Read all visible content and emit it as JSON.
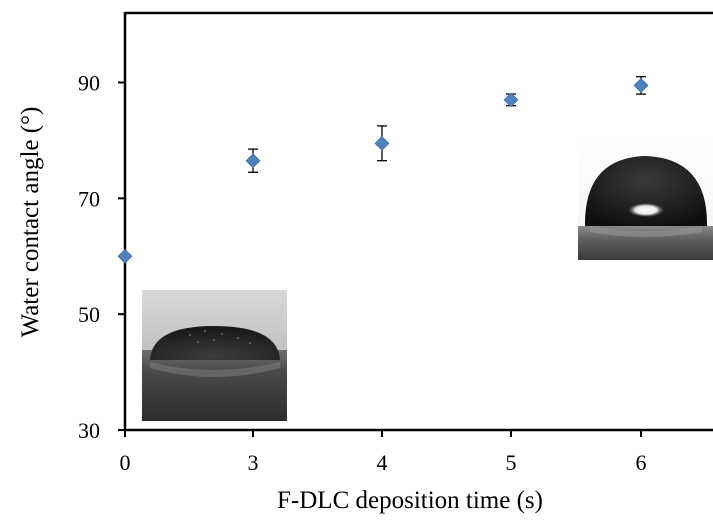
{
  "chart_data": {
    "type": "scatter",
    "xlabel": "F-DLC deposition time (s)",
    "ylabel": "Water contact angle (°)",
    "categories": [
      "0",
      "3",
      "4",
      "5",
      "6"
    ],
    "y_ticks": [
      30,
      50,
      70,
      90
    ],
    "ylim": [
      30,
      102
    ],
    "grid": false,
    "legend": "none",
    "series": [
      {
        "values": [
          60,
          76.5,
          79.5,
          87,
          89.5
        ],
        "err_low": [
          0,
          2,
          3,
          1,
          1.5
        ],
        "err_high": [
          0,
          2,
          3,
          1,
          1.5
        ]
      }
    ],
    "marker": "diamond",
    "marker_color": "#4f81bd",
    "insets": [
      {
        "subject": "water-droplet-photo",
        "angle_state": "low"
      },
      {
        "subject": "water-droplet-photo",
        "angle_state": "high"
      }
    ]
  }
}
